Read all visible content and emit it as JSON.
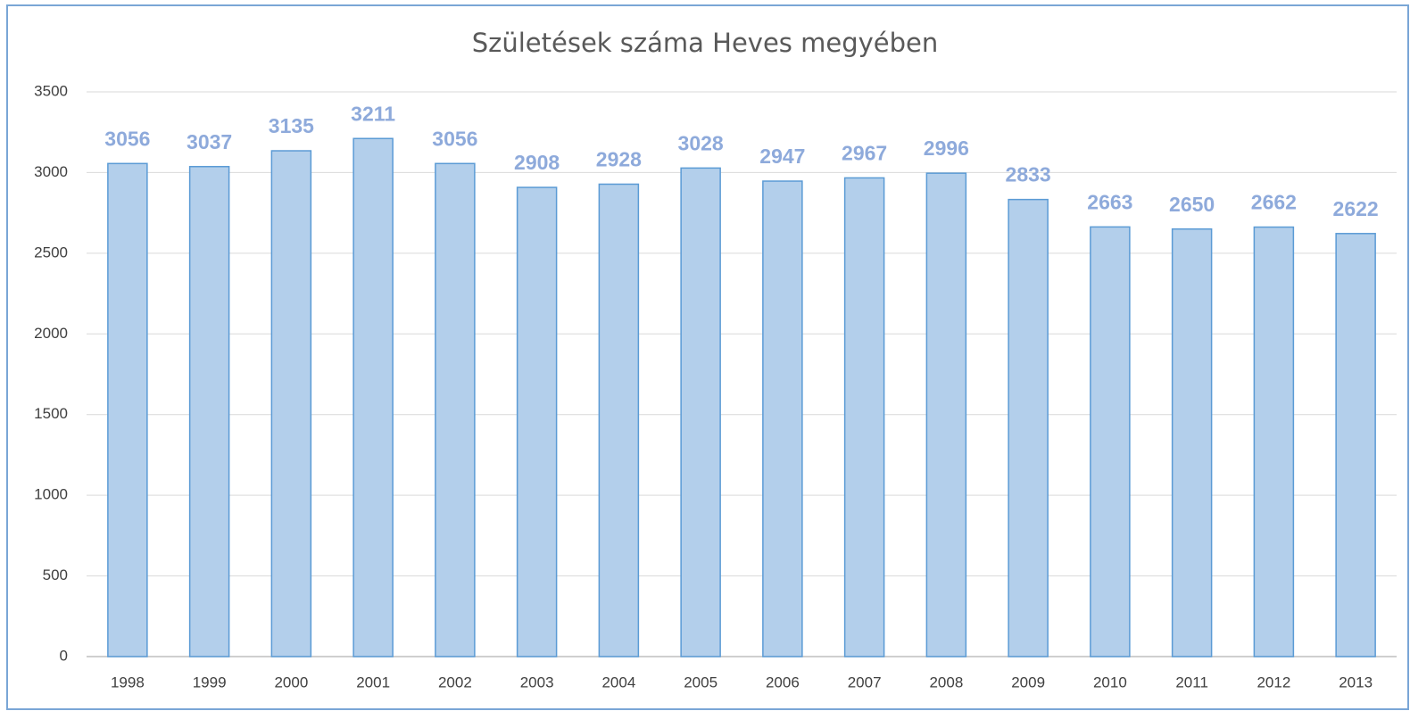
{
  "chart_data": {
    "type": "bar",
    "title": "Születések száma Heves megyében",
    "categories": [
      "1998",
      "1999",
      "2000",
      "2001",
      "2002",
      "2003",
      "2004",
      "2005",
      "2006",
      "2007",
      "2008",
      "2009",
      "2010",
      "2011",
      "2012",
      "2013"
    ],
    "values": [
      3056,
      3037,
      3135,
      3211,
      3056,
      2908,
      2928,
      3028,
      2947,
      2967,
      2996,
      2833,
      2663,
      2650,
      2662,
      2622
    ],
    "color": "#b3cfeb",
    "ylim": [
      0,
      3500
    ],
    "yticks": [
      0,
      500,
      1000,
      1500,
      2000,
      2500,
      3000,
      3500
    ],
    "grid": true
  }
}
